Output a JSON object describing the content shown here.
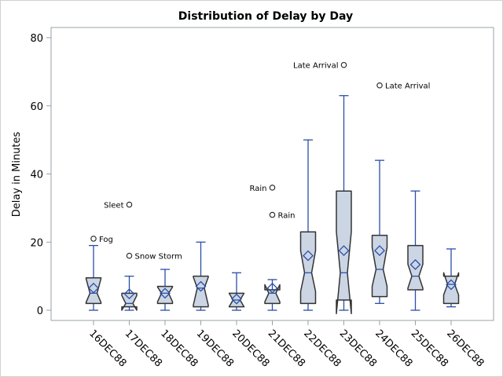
{
  "chart_data": {
    "type": "box",
    "title": "Distribution of Delay by Day",
    "xlabel": "",
    "ylabel": "Delay in Minutes",
    "ylim": [
      0,
      80
    ],
    "yticks": [
      0,
      20,
      40,
      60,
      80
    ],
    "grid": false,
    "notched": true,
    "colors": {
      "fill": "#cbd5e4",
      "outline": "#333333",
      "whisker": "#2a4fa8",
      "mean": "#2a4fa8"
    },
    "categories": [
      "16DEC88",
      "17DEC88",
      "18DEC88",
      "19DEC88",
      "20DEC88",
      "21DEC88",
      "22DEC88",
      "23DEC88",
      "24DEC88",
      "25DEC88",
      "26DEC88"
    ],
    "boxes": [
      {
        "min": 0,
        "q1": 2,
        "median": 5,
        "q3": 9.5,
        "max": 19,
        "mean": 6.5,
        "notch": [
          2.3,
          9.3
        ]
      },
      {
        "min": 0,
        "q1": 1,
        "median": 2,
        "q3": 5,
        "max": 10,
        "mean": 4.8,
        "notch": [
          0,
          4.3
        ]
      },
      {
        "min": 0,
        "q1": 2,
        "median": 5,
        "q3": 7,
        "max": 12,
        "mean": 5,
        "notch": [
          2.5,
          6.8
        ]
      },
      {
        "min": 0,
        "q1": 1,
        "median": 6.5,
        "q3": 10,
        "max": 20,
        "mean": 7,
        "notch": [
          1.5,
          9.7
        ]
      },
      {
        "min": 0,
        "q1": 1,
        "median": 3,
        "q3": 5,
        "max": 11,
        "mean": 3.3,
        "notch": [
          1,
          5
        ]
      },
      {
        "min": 0,
        "q1": 2,
        "median": 5,
        "q3": 6,
        "max": 9,
        "mean": 6.5,
        "notch": [
          2.5,
          7.5
        ]
      },
      {
        "min": 0,
        "q1": 2,
        "median": 11,
        "q3": 23,
        "max": 50,
        "mean": 16,
        "notch": [
          5.5,
          17.5
        ]
      },
      {
        "min": 0,
        "q1": 3,
        "median": 11,
        "q3": 35,
        "max": 63,
        "mean": 17.5,
        "notch": [
          -1,
          23
        ]
      },
      {
        "min": 2,
        "q1": 4,
        "median": 12,
        "q3": 22,
        "max": 44,
        "mean": 17.5,
        "notch": [
          7,
          18.5
        ]
      },
      {
        "min": 0,
        "q1": 6,
        "median": 10,
        "q3": 19,
        "max": 35,
        "mean": 13.4,
        "notch": [
          6.5,
          13.5
        ]
      },
      {
        "min": 1,
        "q1": 2,
        "median": 7.6,
        "q3": 10,
        "max": 18,
        "mean": 7.5,
        "notch": [
          4.5,
          11
        ]
      }
    ],
    "outliers": [
      {
        "category": "16DEC88",
        "value": 21,
        "label": "Fog",
        "side": "right"
      },
      {
        "category": "17DEC88",
        "value": 31,
        "label": "Sleet",
        "side": "left"
      },
      {
        "category": "17DEC88",
        "value": 16,
        "label": "Snow Storm",
        "side": "right"
      },
      {
        "category": "21DEC88",
        "value": 36,
        "label": "Rain",
        "side": "left"
      },
      {
        "category": "21DEC88",
        "value": 28,
        "label": "Rain",
        "side": "right"
      },
      {
        "category": "23DEC88",
        "value": 72,
        "label": "Late Arrival",
        "side": "left"
      },
      {
        "category": "24DEC88",
        "value": 66,
        "label": "Late Arrival",
        "side": "right"
      }
    ]
  }
}
